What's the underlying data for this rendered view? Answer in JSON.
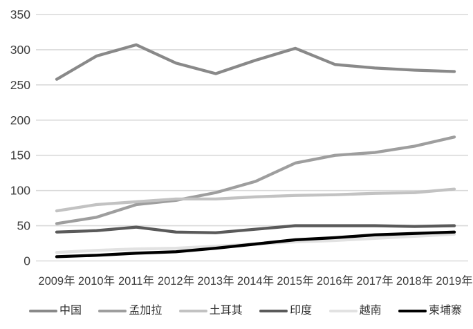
{
  "chart_data": {
    "type": "line",
    "title": "",
    "xlabel": "",
    "ylabel": "",
    "x_categories": [
      "2009年",
      "2010年",
      "2011年",
      "2012年",
      "2013年",
      "2014年",
      "2015年",
      "2016年",
      "2017年",
      "2018年",
      "2019年"
    ],
    "series": [
      {
        "name": "中国",
        "color": "#898989",
        "values": [
          258,
          291,
          307,
          281,
          266,
          285,
          302,
          279,
          274,
          271,
          269
        ]
      },
      {
        "name": "孟加拉",
        "color": "#9E9E9E",
        "values": [
          53,
          62,
          80,
          86,
          97,
          113,
          139,
          150,
          154,
          163,
          176
        ]
      },
      {
        "name": "土耳其",
        "color": "#C2C2C2",
        "values": [
          71,
          80,
          84,
          88,
          88,
          91,
          93,
          94,
          96,
          97,
          102
        ]
      },
      {
        "name": "印度",
        "color": "#5A5A5A",
        "values": [
          41,
          43,
          48,
          41,
          40,
          45,
          50,
          50,
          50,
          49,
          50
        ]
      },
      {
        "name": "越南",
        "color": "#E2E2E2",
        "values": [
          12,
          15,
          17,
          18,
          21,
          24,
          27,
          29,
          32,
          35,
          38
        ]
      },
      {
        "name": "柬埔寨",
        "color": "#000000",
        "values": [
          6,
          8,
          11,
          13,
          18,
          24,
          30,
          33,
          37,
          39,
          41
        ]
      }
    ],
    "y_ticks": [
      0,
      50,
      100,
      150,
      200,
      250,
      300,
      350
    ],
    "ylim": [
      0,
      350
    ],
    "grid": true,
    "gridline_color": "#D9D9D9",
    "axis_label_color": "#3F3F3F",
    "legend_position": "bottom"
  }
}
